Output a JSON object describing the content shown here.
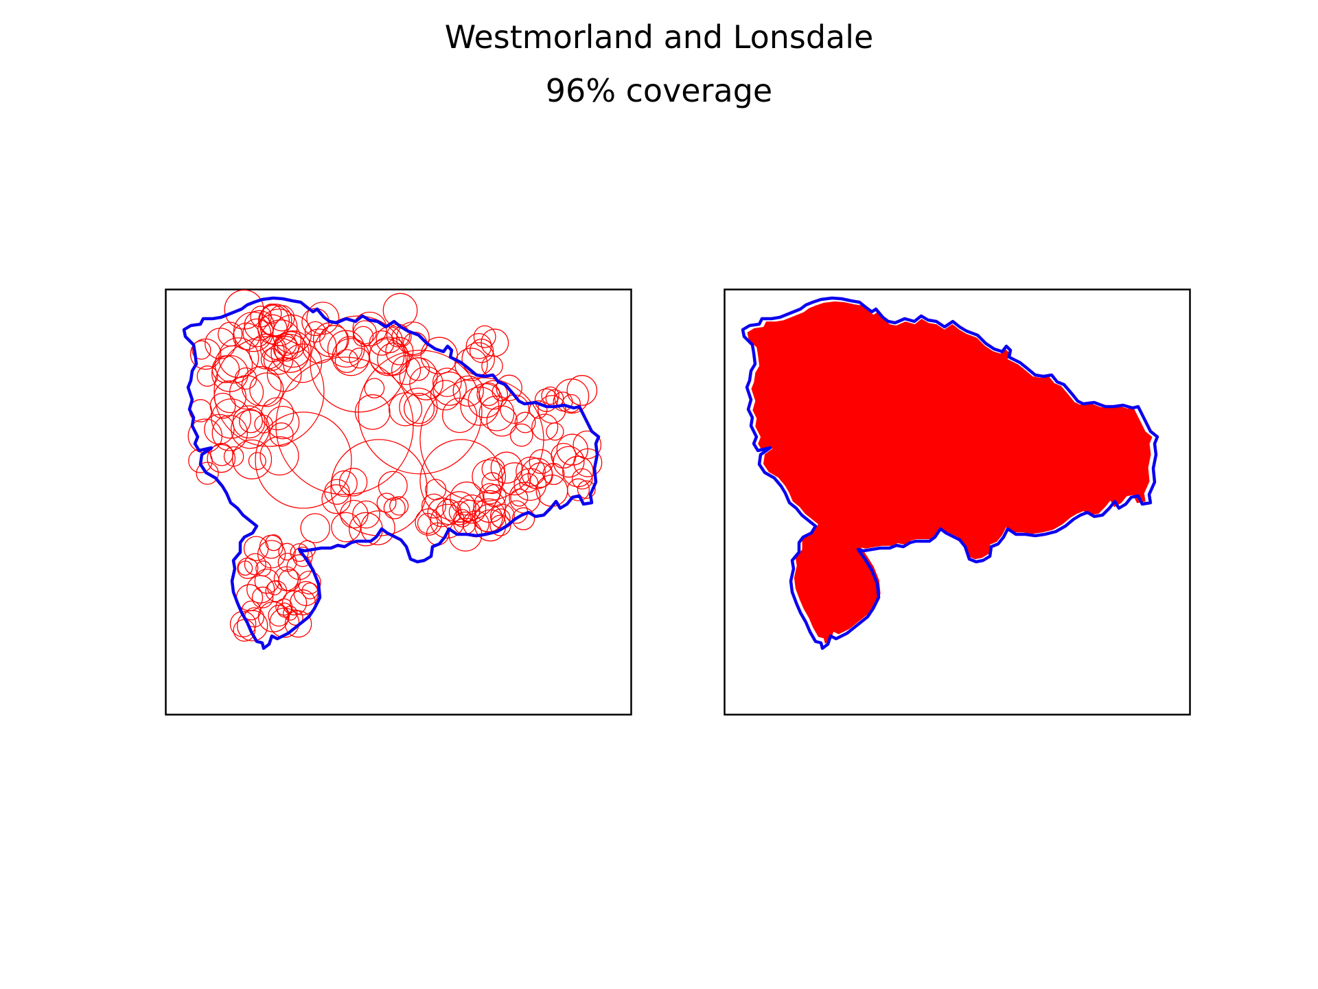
{
  "figure": {
    "title": "Westmorland and Lonsdale",
    "subtitle": "96% coverage"
  },
  "panels": [
    {
      "name": "circle-cover-panel",
      "description_style": "outline-circles"
    },
    {
      "name": "filled-cover-panel",
      "description_style": "filled-union"
    }
  ],
  "colors": {
    "boundary": "#0000ee",
    "coverage": "#ff0000",
    "frame": "#000000",
    "background": "#ffffff"
  }
}
